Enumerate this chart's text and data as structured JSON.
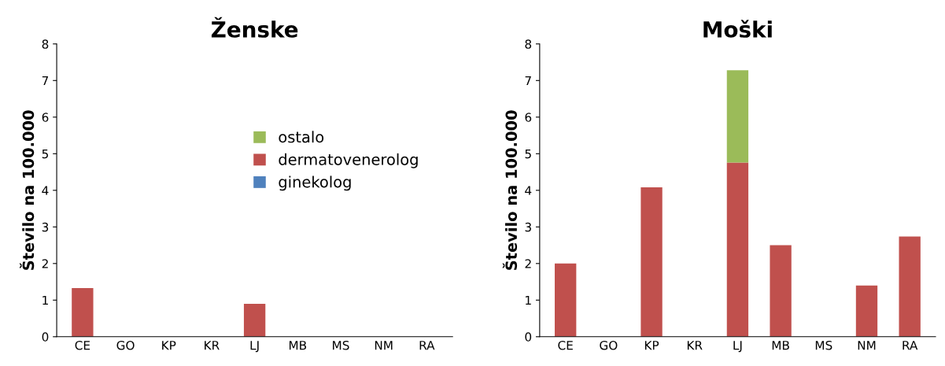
{
  "chart_data": [
    {
      "type": "bar",
      "title": "Ženske",
      "ylabel": "Število na 100.000",
      "categories": [
        "CE",
        "GO",
        "KP",
        "KR",
        "LJ",
        "MB",
        "MS",
        "NM",
        "RA"
      ],
      "stacked": true,
      "ylim": [
        0,
        8
      ],
      "yticks": [
        0,
        1,
        2,
        3,
        4,
        5,
        6,
        7,
        8
      ],
      "grid": false,
      "legend": "top right",
      "series": [
        {
          "name": "ginekolog",
          "color": "#4f81bd",
          "values": [
            0,
            0,
            0,
            0,
            0,
            0,
            0,
            0,
            0
          ]
        },
        {
          "name": "dermatovenerolog",
          "color": "#c0504d",
          "values": [
            1.33,
            0,
            0,
            0,
            0.9,
            0,
            0,
            0,
            0
          ]
        },
        {
          "name": "ostalo",
          "color": "#9bbb59",
          "values": [
            0,
            0,
            0,
            0,
            0,
            0,
            0,
            0,
            0
          ]
        }
      ]
    },
    {
      "type": "bar",
      "title": "Moški",
      "ylabel": "Število na 100.000",
      "categories": [
        "CE",
        "GO",
        "KP",
        "KR",
        "LJ",
        "MB",
        "MS",
        "NM",
        "RA"
      ],
      "stacked": true,
      "ylim": [
        0,
        8
      ],
      "yticks": [
        0,
        1,
        2,
        3,
        4,
        5,
        6,
        7,
        8
      ],
      "grid": false,
      "legend": false,
      "series": [
        {
          "color": "#4f81bd",
          "values": [
            0,
            0,
            0,
            0,
            0,
            0,
            0,
            0,
            0
          ]
        },
        {
          "color": "#c0504d",
          "values": [
            2.0,
            0,
            4.08,
            0,
            4.76,
            2.5,
            0,
            1.4,
            2.74
          ]
        },
        {
          "color": "#9bbb59",
          "values": [
            0,
            0,
            0,
            0,
            2.52,
            0,
            0,
            0,
            0
          ]
        }
      ]
    }
  ]
}
